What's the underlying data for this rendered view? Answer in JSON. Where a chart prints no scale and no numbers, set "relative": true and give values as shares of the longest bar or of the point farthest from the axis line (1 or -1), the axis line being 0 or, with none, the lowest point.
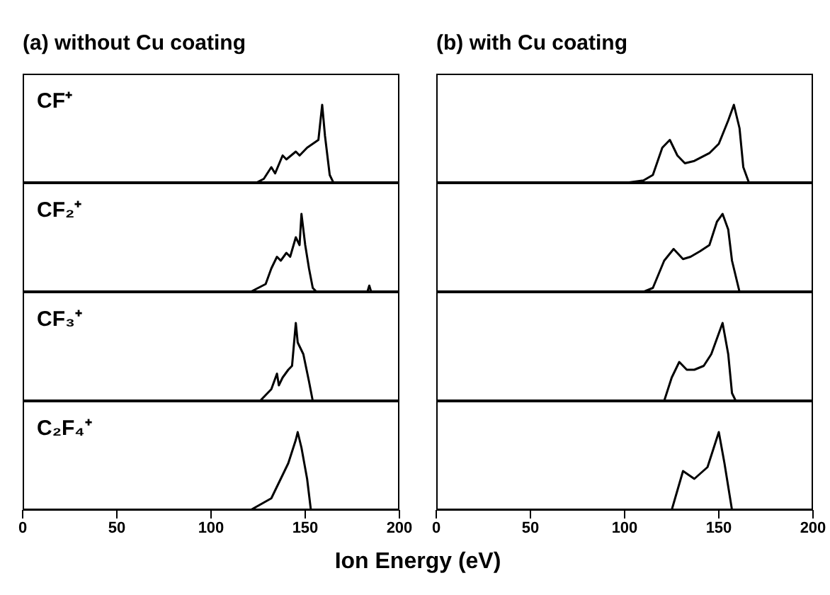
{
  "chart_data": [
    {
      "type": "line",
      "title": "(a) without Cu coating",
      "annotations": [
        "CF⁺"
      ],
      "relative": true,
      "xlim": [
        0,
        200
      ],
      "tick_labels": false,
      "marker": "none",
      "series": [
        {
          "color": "#000000",
          "x": [
            0,
            120,
            124,
            128,
            132,
            134,
            138,
            140,
            145,
            147,
            151,
            154,
            157,
            159,
            160.5,
            163,
            165,
            200
          ],
          "values": [
            0,
            0,
            0,
            0.05,
            0.2,
            0.12,
            0.35,
            0.3,
            0.4,
            0.35,
            0.45,
            0.5,
            0.55,
            1,
            0.6,
            0.1,
            0,
            0
          ]
        }
      ]
    },
    {
      "type": "line",
      "title": "(b) with Cu coating",
      "relative": true,
      "xlim": [
        0,
        200
      ],
      "tick_labels": false,
      "marker": "none",
      "series": [
        {
          "color": "#000000",
          "x": [
            0,
            101,
            110,
            115,
            120,
            124,
            128,
            132,
            137,
            145,
            150,
            155,
            158,
            161,
            163,
            166,
            200
          ],
          "values": [
            0,
            0,
            0.03,
            0.1,
            0.45,
            0.55,
            0.35,
            0.25,
            0.28,
            0.38,
            0.5,
            0.8,
            1,
            0.7,
            0.2,
            0,
            0
          ]
        }
      ]
    },
    {
      "type": "line",
      "annotations": [
        "CF₂⁺"
      ],
      "relative": true,
      "xlim": [
        0,
        200
      ],
      "tick_labels": false,
      "marker": "none",
      "series": [
        {
          "color": "#000000",
          "x": [
            0,
            121,
            129,
            132,
            135,
            137,
            140,
            142,
            145,
            147,
            148,
            150,
            152,
            154,
            156,
            183,
            184,
            185,
            200
          ],
          "values": [
            0,
            0,
            0.1,
            0.3,
            0.45,
            0.4,
            0.5,
            0.45,
            0.7,
            0.6,
            1,
            0.6,
            0.3,
            0.05,
            0,
            0,
            0.08,
            0,
            0
          ]
        }
      ]
    },
    {
      "type": "line",
      "relative": true,
      "xlim": [
        0,
        200
      ],
      "tick_labels": false,
      "marker": "none",
      "series": [
        {
          "color": "#000000",
          "x": [
            0,
            110,
            115,
            121,
            126,
            131,
            135,
            140,
            145,
            149,
            152,
            155,
            157,
            161,
            200
          ],
          "values": [
            0,
            0,
            0.05,
            0.4,
            0.55,
            0.42,
            0.45,
            0.52,
            0.6,
            0.9,
            1,
            0.8,
            0.4,
            0,
            0
          ]
        }
      ]
    },
    {
      "type": "line",
      "annotations": [
        "CF₃⁺"
      ],
      "relative": true,
      "xlim": [
        0,
        200
      ],
      "tick_labels": false,
      "marker": "none",
      "series": [
        {
          "color": "#000000",
          "x": [
            0,
            126,
            132,
            135,
            136,
            138,
            141,
            143,
            145,
            146,
            149,
            152,
            154,
            200
          ],
          "values": [
            0,
            0,
            0.15,
            0.35,
            0.2,
            0.3,
            0.4,
            0.45,
            1,
            0.75,
            0.6,
            0.25,
            0,
            0
          ]
        }
      ]
    },
    {
      "type": "line",
      "relative": true,
      "xlim": [
        0,
        200
      ],
      "tick_labels": false,
      "marker": "none",
      "series": [
        {
          "color": "#000000",
          "x": [
            0,
            121,
            125,
            129,
            133,
            137,
            142,
            146,
            152,
            155,
            157,
            159,
            200
          ],
          "values": [
            0,
            0,
            0.3,
            0.5,
            0.4,
            0.4,
            0.45,
            0.6,
            1,
            0.6,
            0.1,
            0,
            0
          ]
        }
      ]
    },
    {
      "type": "line",
      "annotations": [
        "C₂F₄⁺"
      ],
      "xlabel": "Ion Energy (eV)",
      "relative": true,
      "xlim": [
        0,
        200
      ],
      "xticks": [
        0,
        50,
        100,
        150,
        200
      ],
      "tick_labels": "x",
      "marker": "none",
      "series": [
        {
          "color": "#000000",
          "x": [
            0,
            121,
            132,
            137,
            141,
            145,
            146,
            148,
            151,
            153,
            200
          ],
          "values": [
            0,
            0,
            0.15,
            0.4,
            0.6,
            0.9,
            1,
            0.8,
            0.4,
            0,
            0
          ]
        }
      ]
    },
    {
      "type": "line",
      "relative": true,
      "xlim": [
        0,
        200
      ],
      "xticks": [
        0,
        50,
        100,
        150,
        200
      ],
      "tick_labels": "x",
      "marker": "none",
      "series": [
        {
          "color": "#000000",
          "x": [
            0,
            125,
            131,
            137,
            144,
            150,
            153,
            157,
            200
          ],
          "values": [
            0,
            0,
            0.5,
            0.4,
            0.55,
            1,
            0.6,
            0,
            0
          ]
        }
      ]
    }
  ]
}
